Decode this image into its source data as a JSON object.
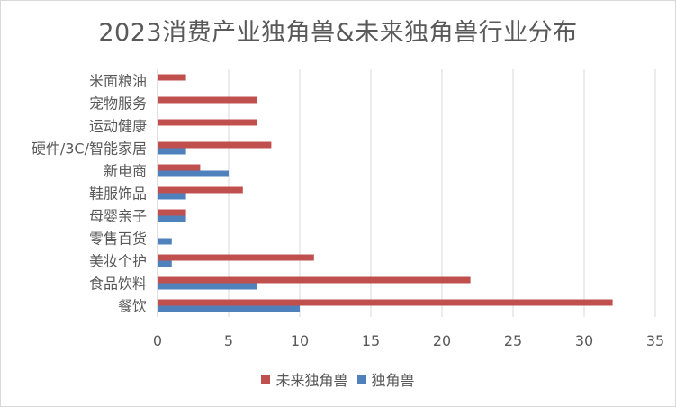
{
  "chart_data": {
    "type": "bar",
    "orientation": "horizontal",
    "title": "2023消费产业独角兽&未来独角兽行业分布",
    "categories": [
      "米面粮油",
      "宠物服务",
      "运动健康",
      "硬件/3C/智能家居",
      "新电商",
      "鞋服饰品",
      "母婴亲子",
      "零售百货",
      "美妆个护",
      "食品饮料",
      "餐饮"
    ],
    "series": [
      {
        "name": "未来独角兽",
        "color": "#c0504d",
        "values": [
          2,
          7,
          7,
          8,
          3,
          6,
          2,
          0,
          11,
          22,
          32
        ]
      },
      {
        "name": "独角兽",
        "color": "#4f81bd",
        "values": [
          0,
          0,
          0,
          2,
          5,
          2,
          2,
          1,
          1,
          7,
          10
        ]
      }
    ],
    "xlim": [
      0,
      35
    ],
    "xticks": [
      0,
      5,
      10,
      15,
      20,
      25,
      30,
      35
    ],
    "grid": true,
    "legend_position": "bottom"
  }
}
